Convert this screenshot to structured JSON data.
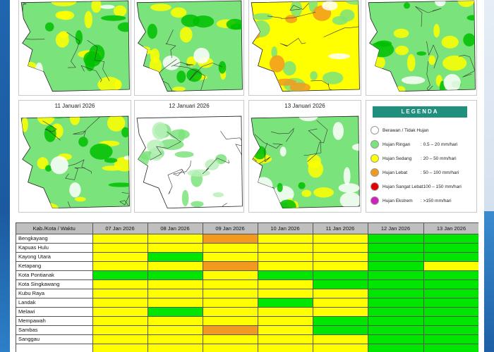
{
  "maps": [
    {
      "caption": "",
      "style": "green"
    },
    {
      "caption": "",
      "style": "green"
    },
    {
      "caption": "",
      "style": "yellow"
    },
    {
      "caption": "",
      "style": "green"
    },
    {
      "caption": "11 Januari 2026",
      "style": "green"
    },
    {
      "caption": "12 Januari 2026",
      "style": "white"
    },
    {
      "caption": "13 Januari 2026",
      "style": "mixed"
    }
  ],
  "legend": {
    "title": "LEGENDA",
    "items": [
      {
        "name": "Berawan / Tidak Hujan",
        "range": "",
        "color": "#ffffff"
      },
      {
        "name": "Hujan Ringan",
        "range": ": 0.5 – 20 mm/hari",
        "color": "#7be37b"
      },
      {
        "name": "Hujan Sedang",
        "range": ": 20 – 50 mm/hari",
        "color": "#ffff00"
      },
      {
        "name": "Hujan Lebat",
        "range": ": 50 – 100 mm/hari",
        "color": "#f29a1f"
      },
      {
        "name": "Hujan Sangat Lebat",
        "range": ": 100 – 150 mm/hari",
        "color": "#e00000"
      },
      {
        "name": "Hujan Ekstrem",
        "range": ": >150 mm/hari",
        "color": "#d020c0"
      }
    ]
  },
  "table": {
    "header": [
      "Kab./Kota / Waktu",
      "07 Jan 2026",
      "08 Jan 2026",
      "09 Jan 2026",
      "10 Jan 2026",
      "11 Jan 2026",
      "12 Jan 2026",
      "13 Jan 2026"
    ],
    "rows": [
      {
        "name": "Bengkayang",
        "cells": [
          "y",
          "y",
          "o",
          "y",
          "y",
          "g",
          "g"
        ]
      },
      {
        "name": "Kapuas Hulu",
        "cells": [
          "y",
          "y",
          "y",
          "y",
          "y",
          "g",
          "g"
        ]
      },
      {
        "name": "Kayong Utara",
        "cells": [
          "y",
          "g",
          "y",
          "y",
          "y",
          "g",
          "g"
        ]
      },
      {
        "name": "Ketapang",
        "cells": [
          "y",
          "y",
          "o",
          "y",
          "y",
          "g",
          "y"
        ]
      },
      {
        "name": "Kota Pontianak",
        "cells": [
          "g",
          "g",
          "y",
          "g",
          "g",
          "g",
          "g"
        ]
      },
      {
        "name": "Kota Singkawang",
        "cells": [
          "y",
          "y",
          "y",
          "y",
          "g",
          "g",
          "g"
        ]
      },
      {
        "name": "Kubu Raya",
        "cells": [
          "y",
          "y",
          "y",
          "y",
          "y",
          "g",
          "g"
        ]
      },
      {
        "name": "Landak",
        "cells": [
          "y",
          "y",
          "y",
          "g",
          "y",
          "g",
          "g"
        ]
      },
      {
        "name": "Melawi",
        "cells": [
          "y",
          "g",
          "y",
          "y",
          "y",
          "g",
          "g"
        ]
      },
      {
        "name": "Mempawah",
        "cells": [
          "y",
          "y",
          "y",
          "y",
          "g",
          "g",
          "g"
        ]
      },
      {
        "name": "Sambas",
        "cells": [
          "y",
          "y",
          "o",
          "y",
          "g",
          "g",
          "g"
        ]
      },
      {
        "name": "Sanggau",
        "cells": [
          "y",
          "y",
          "y",
          "y",
          "y",
          "g",
          "g"
        ]
      },
      {
        "name": "",
        "cells": [
          "y",
          "y",
          "y",
          "y",
          "y",
          "g",
          "g"
        ]
      }
    ]
  },
  "colors": {
    "y": "#ffff00",
    "g": "#00e600",
    "o": "#f29a1f",
    "w": "#ffffff"
  }
}
